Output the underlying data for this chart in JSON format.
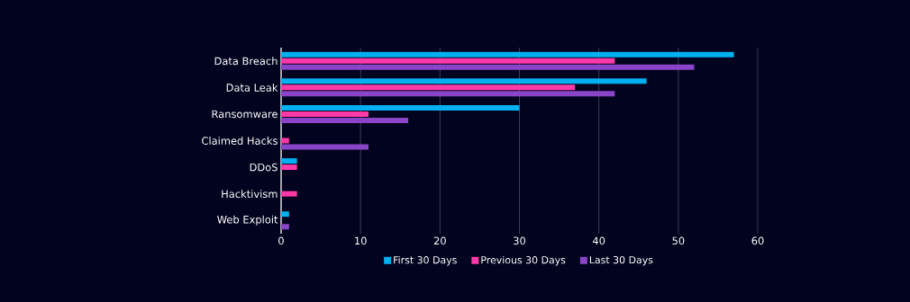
{
  "chart_data": {
    "type": "bar",
    "orientation": "horizontal",
    "categories": [
      "Data Breach",
      "Data Leak",
      "Ransomware",
      "Claimed Hacks",
      "DDoS",
      "Hacktivism",
      "Web Exploit"
    ],
    "series": [
      {
        "name": "First 30 Days",
        "color": "#00b0f0",
        "values": [
          57,
          46,
          30,
          0,
          2,
          0,
          1
        ]
      },
      {
        "name": "Previous 30 Days",
        "color": "#ff3aa8",
        "values": [
          42,
          37,
          11,
          1,
          2,
          2,
          0
        ]
      },
      {
        "name": "Last 30 Days",
        "color": "#8a44c8",
        "values": [
          52,
          42,
          16,
          11,
          0,
          0,
          1
        ]
      }
    ],
    "xlim": [
      0,
      60
    ],
    "xticks": [
      0,
      10,
      20,
      30,
      40,
      50,
      60
    ],
    "grid": "x",
    "legend": "bottom"
  }
}
